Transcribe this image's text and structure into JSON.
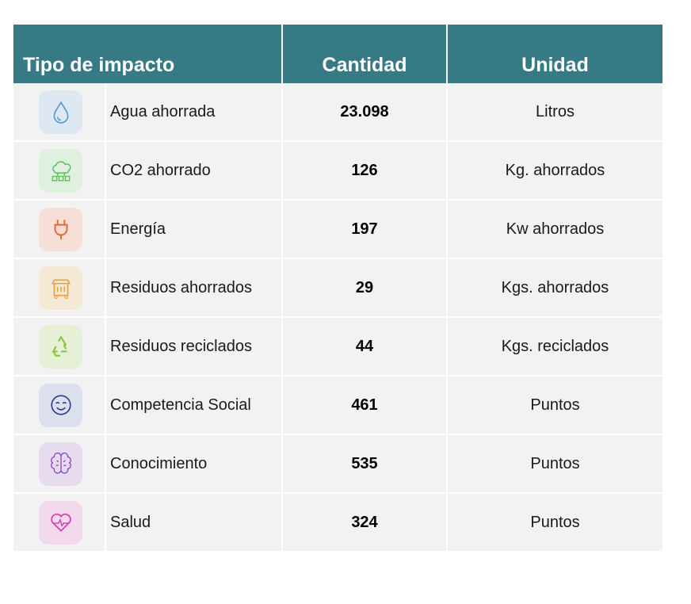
{
  "table": {
    "headers": [
      "Tipo de impacto",
      "Cantidad",
      "Unidad"
    ],
    "rows": [
      [
        "Agua ahorrada",
        "23.098",
        "Litros"
      ],
      [
        "CO2 ahorrado",
        "126",
        "Kg. ahorrados"
      ],
      [
        "Energía",
        "197",
        "Kw ahorrados"
      ],
      [
        "Residuos ahorrados",
        "29",
        "Kgs. ahorrados"
      ],
      [
        "Residuos reciclados",
        "44",
        "Kgs. reciclados"
      ],
      [
        "Competencia Social",
        "461",
        "Puntos"
      ],
      [
        "Conocimiento",
        "535",
        "Puntos"
      ],
      [
        "Salud",
        "324",
        "Puntos"
      ]
    ]
  }
}
